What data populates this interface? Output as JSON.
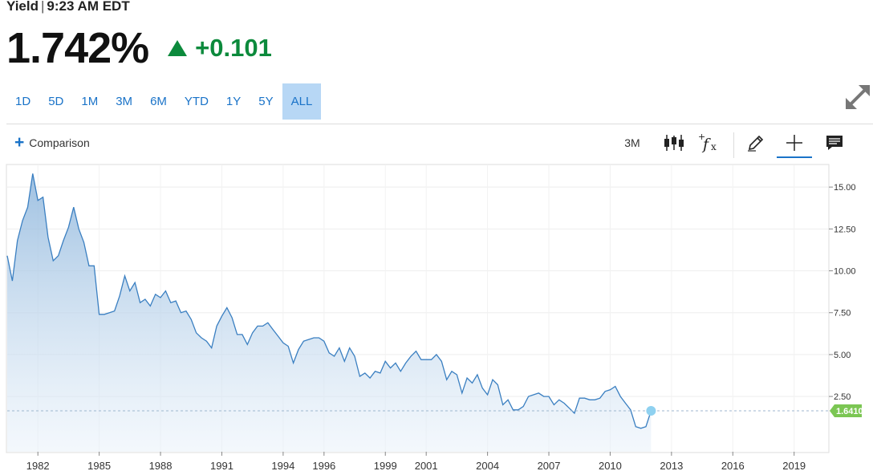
{
  "header": {
    "label": "Yield",
    "separator": "|",
    "time": "9:23 AM EDT"
  },
  "quote": {
    "price": "1.742%",
    "change": "+0.101",
    "direction": "up",
    "up_color": "#0c8a3c"
  },
  "ranges": [
    {
      "label": "1D",
      "active": false
    },
    {
      "label": "5D",
      "active": false
    },
    {
      "label": "1M",
      "active": false
    },
    {
      "label": "3M",
      "active": false
    },
    {
      "label": "6M",
      "active": false
    },
    {
      "label": "YTD",
      "active": false
    },
    {
      "label": "1Y",
      "active": false
    },
    {
      "label": "5Y",
      "active": false
    },
    {
      "label": "ALL",
      "active": true
    }
  ],
  "toolbar": {
    "comparison_label": "Comparison",
    "interval_label": "3M",
    "tools": [
      "candlestick-icon",
      "indicator-fx-icon",
      "pencil-icon",
      "crosshair-icon",
      "comment-icon"
    ]
  },
  "colors": {
    "accent": "#1a73c8",
    "line": "#3a7fc1",
    "active_range_bg": "#b7d7f5",
    "last_value_badge": "#7bc653"
  },
  "chart_data": {
    "type": "area",
    "x_start_year": 1980.5,
    "x_step_years": 0.25,
    "values": [
      10.9,
      9.4,
      11.8,
      13.0,
      13.8,
      15.8,
      14.2,
      14.4,
      12.0,
      10.6,
      10.9,
      11.8,
      12.6,
      13.8,
      12.5,
      11.7,
      10.3,
      10.3,
      7.4,
      7.4,
      7.5,
      7.6,
      8.5,
      9.7,
      8.8,
      9.3,
      8.1,
      8.3,
      7.9,
      8.6,
      8.4,
      8.8,
      8.1,
      8.2,
      7.5,
      7.6,
      7.1,
      6.3,
      6.0,
      5.8,
      5.4,
      6.7,
      7.3,
      7.8,
      7.2,
      6.2,
      6.2,
      5.6,
      6.3,
      6.7,
      6.7,
      6.9,
      6.5,
      6.1,
      5.7,
      5.5,
      4.5,
      5.3,
      5.8,
      5.9,
      6.0,
      6.0,
      5.8,
      5.1,
      4.9,
      5.4,
      4.6,
      5.4,
      4.9,
      3.7,
      3.9,
      3.6,
      4.0,
      3.9,
      4.6,
      4.2,
      4.5,
      4.0,
      4.5,
      4.9,
      5.2,
      4.7,
      4.7,
      4.7,
      5.0,
      4.6,
      3.5,
      4.0,
      3.8,
      2.7,
      3.6,
      3.3,
      3.8,
      3.0,
      2.6,
      3.5,
      3.2,
      2.0,
      2.3,
      1.7,
      1.7,
      1.9,
      2.5,
      2.6,
      2.7,
      2.5,
      2.5,
      2.0,
      2.3,
      2.1,
      1.8,
      1.5,
      2.4,
      2.4,
      2.3,
      2.3,
      2.4,
      2.8,
      2.9,
      3.1,
      2.5,
      2.1,
      1.7,
      0.7,
      0.6,
      0.7,
      1.641
    ],
    "last_value_label": "1.6410",
    "y_ticks": [
      2.5,
      5,
      7.5,
      10,
      12.5,
      15
    ],
    "y_tick_labels": [
      "2.50",
      "5.00",
      "7.50",
      "10.00",
      "12.50",
      "15.00"
    ],
    "ylim": [
      -0.8,
      16.3
    ],
    "x_ticks": [
      1982,
      1985,
      1988,
      1991,
      1994,
      1996,
      1999,
      2001,
      2004,
      2007,
      2010,
      2013,
      2016,
      2019
    ],
    "xlim": [
      1980.5,
      2020.7
    ],
    "grid": true,
    "title": "",
    "xlabel": "",
    "ylabel": ""
  }
}
